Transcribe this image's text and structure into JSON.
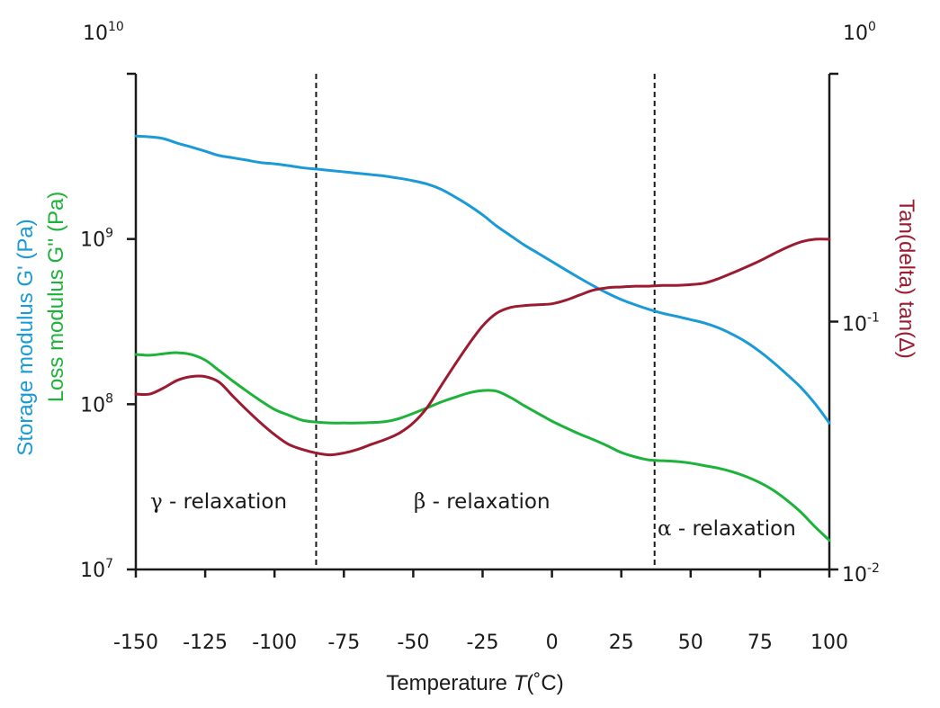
{
  "chart_data": {
    "type": "line",
    "xlabel": "Temperature ",
    "xlabel_symbol": "T",
    "xlabel_unit": "(˚C)",
    "xlim": [
      -150,
      100
    ],
    "x_ticks": [
      -150,
      -125,
      -100,
      -75,
      -50,
      -25,
      0,
      25,
      50,
      75,
      100
    ],
    "x_tick_labels": [
      "-150",
      "-125",
      "-100",
      "-75",
      "-50",
      "-25",
      "0",
      "25",
      "50",
      "75",
      "100"
    ],
    "y_left": {
      "scale": "log",
      "ylim": [
        10000000,
        10000000000
      ],
      "ticks": [
        {
          "value": 10000000,
          "base": "10",
          "exp": "7"
        },
        {
          "value": 100000000,
          "base": "10",
          "exp": "8"
        },
        {
          "value": 1000000000,
          "base": "10",
          "exp": "9"
        },
        {
          "value": 10000000000,
          "base": "10",
          "exp": "10"
        }
      ],
      "label_storage": "Storage modulus G' (Pa)",
      "label_loss": "Loss modulus G'' (Pa)",
      "color_storage": "#1a9ad6",
      "color_loss": "#1db33a"
    },
    "y_right": {
      "scale": "log",
      "ylim": [
        0.01,
        1
      ],
      "ticks": [
        {
          "value": 0.01,
          "base": "10",
          "exp": "-2"
        },
        {
          "value": 0.1,
          "base": "10",
          "exp": "-1"
        },
        {
          "value": 1,
          "base": "10",
          "exp": "0"
        }
      ],
      "label": "Tan(delta) tan(∆)",
      "color": "#9b1b30"
    },
    "series": [
      {
        "name": "Storage modulus G' (Pa)",
        "axis": "left",
        "color": "#1a9ad6",
        "x": [
          -150,
          -145,
          -140,
          -135,
          -130,
          -125,
          -120,
          -115,
          -110,
          -105,
          -100,
          -95,
          -90,
          -85,
          -80,
          -75,
          -70,
          -65,
          -60,
          -55,
          -50,
          -45,
          -40,
          -35,
          -30,
          -25,
          -20,
          -15,
          -10,
          -5,
          0,
          5,
          10,
          15,
          20,
          25,
          30,
          35,
          40,
          45,
          50,
          55,
          60,
          65,
          70,
          75,
          80,
          85,
          90,
          95,
          100
        ],
        "y": [
          4200000000,
          4150000000,
          4050000000,
          3800000000,
          3600000000,
          3400000000,
          3200000000,
          3100000000,
          3000000000,
          2900000000,
          2850000000,
          2780000000,
          2700000000,
          2650000000,
          2600000000,
          2550000000,
          2500000000,
          2450000000,
          2400000000,
          2330000000,
          2250000000,
          2150000000,
          2000000000,
          1800000000,
          1600000000,
          1400000000,
          1200000000,
          1050000000,
          920000000,
          820000000,
          730000000,
          650000000,
          580000000,
          520000000,
          470000000,
          430000000,
          400000000,
          375000000,
          355000000,
          340000000,
          325000000,
          310000000,
          290000000,
          265000000,
          238000000,
          208000000,
          178000000,
          150000000,
          125000000,
          100000000,
          77000000
        ]
      },
      {
        "name": "Loss modulus G'' (Pa)",
        "axis": "left",
        "color": "#1db33a",
        "x": [
          -150,
          -145,
          -140,
          -135,
          -130,
          -125,
          -120,
          -115,
          -110,
          -105,
          -100,
          -95,
          -90,
          -85,
          -80,
          -75,
          -70,
          -65,
          -60,
          -55,
          -50,
          -45,
          -40,
          -35,
          -30,
          -25,
          -20,
          -15,
          -10,
          -5,
          0,
          5,
          10,
          15,
          20,
          25,
          30,
          35,
          40,
          45,
          50,
          55,
          60,
          65,
          70,
          75,
          80,
          85,
          90,
          95,
          100
        ],
        "y": [
          200000000,
          198000000,
          202000000,
          205000000,
          200000000,
          185000000,
          160000000,
          138000000,
          120000000,
          105000000,
          93000000,
          86000000,
          80000000,
          78000000,
          77000000,
          77000000,
          77000000,
          77500000,
          78500000,
          82000000,
          88000000,
          95000000,
          103000000,
          110000000,
          117000000,
          121000000,
          120000000,
          110000000,
          98000000,
          88000000,
          79000000,
          72000000,
          66000000,
          61000000,
          56000000,
          51000000,
          48000000,
          46000000,
          45500000,
          45000000,
          44000000,
          42500000,
          41000000,
          39000000,
          36500000,
          33500000,
          30000000,
          26000000,
          22000000,
          18000000,
          15000000
        ]
      },
      {
        "name": "Tan(delta) tan(∆)",
        "axis": "right",
        "color": "#9b1b30",
        "x": [
          -150,
          -145,
          -140,
          -135,
          -130,
          -125,
          -120,
          -115,
          -110,
          -105,
          -100,
          -95,
          -90,
          -85,
          -80,
          -75,
          -70,
          -65,
          -60,
          -55,
          -50,
          -45,
          -40,
          -35,
          -30,
          -25,
          -20,
          -15,
          -10,
          -5,
          0,
          5,
          10,
          15,
          20,
          25,
          30,
          35,
          40,
          45,
          50,
          55,
          60,
          65,
          70,
          75,
          80,
          85,
          90,
          95,
          100
        ],
        "y": [
          0.051,
          0.051,
          0.054,
          0.058,
          0.06,
          0.06,
          0.057,
          0.05,
          0.044,
          0.039,
          0.035,
          0.032,
          0.0305,
          0.0295,
          0.029,
          0.0295,
          0.0305,
          0.032,
          0.0335,
          0.0355,
          0.039,
          0.045,
          0.055,
          0.067,
          0.081,
          0.096,
          0.108,
          0.114,
          0.116,
          0.117,
          0.118,
          0.122,
          0.128,
          0.134,
          0.137,
          0.138,
          0.139,
          0.139,
          0.14,
          0.14,
          0.141,
          0.143,
          0.149,
          0.157,
          0.166,
          0.176,
          0.188,
          0.2,
          0.21,
          0.215,
          0.215
        ]
      }
    ],
    "dividers": [
      -85,
      37
    ],
    "annotations": [
      {
        "symbol": "γ",
        "text": " - relaxation"
      },
      {
        "symbol": "β",
        "text": " - relaxation"
      },
      {
        "symbol": "α",
        "text": " - relaxation"
      }
    ],
    "grid": false
  }
}
